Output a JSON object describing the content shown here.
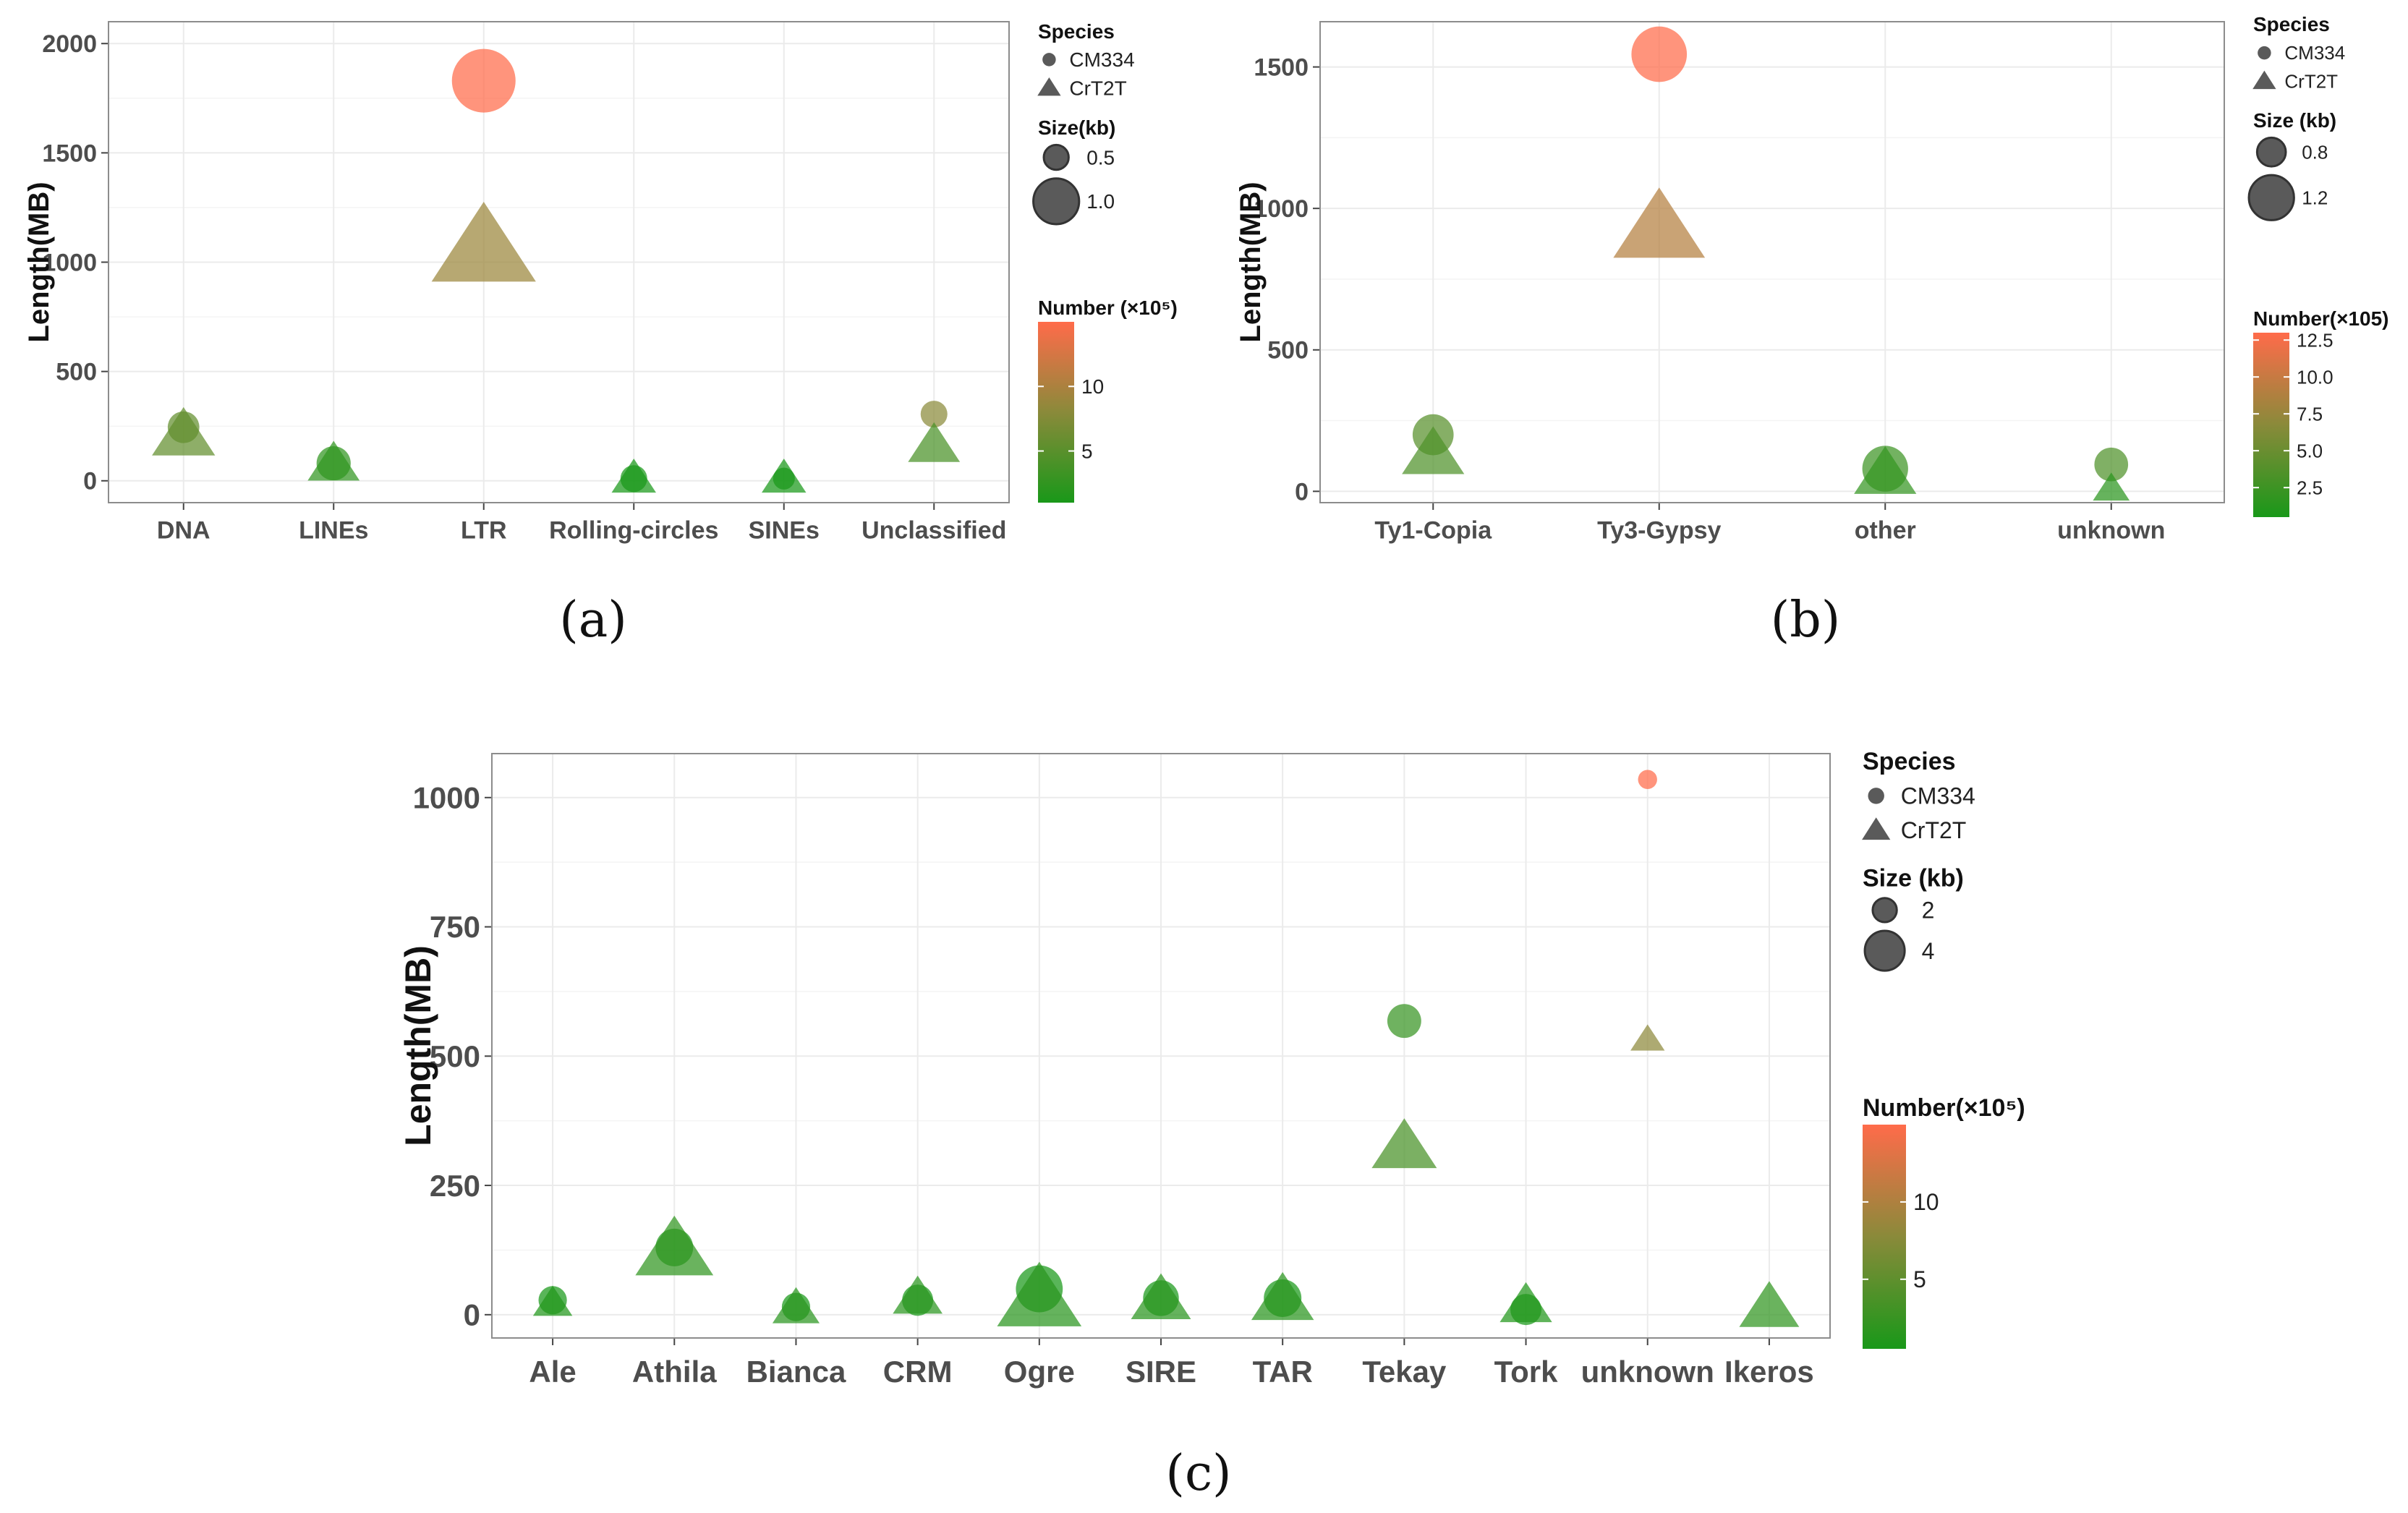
{
  "colors": {
    "low": "#199819",
    "mid": "#8a8a3a",
    "high": "#ff6b4a",
    "legend_shape": "#5a5a5a",
    "grid": "#ebebeb",
    "panel_border": "#8c8c8c"
  },
  "chart_data": [
    {
      "id": "a",
      "type": "scatter",
      "caption": "(a)",
      "ylabel": "Length(MB)",
      "xlabel": "",
      "categories": [
        "DNA",
        "LINEs",
        "LTR",
        "Rolling-circles",
        "SINEs",
        "Unclassified"
      ],
      "ylim": [
        -100,
        2100
      ],
      "yticks": [
        0,
        500,
        1000,
        1500,
        2000
      ],
      "color_range": [
        1,
        15
      ],
      "size_range_kb": [
        0.2,
        1.2
      ],
      "series": [
        {
          "name": "CM334",
          "shape": "circle",
          "values": [
            245,
            80,
            1830,
            10,
            10,
            305
          ],
          "size_kb": [
            0.55,
            0.6,
            1.2,
            0.45,
            0.35,
            0.45
          ],
          "number": [
            5.5,
            2.5,
            15,
            1,
            1,
            8
          ]
        },
        {
          "name": "CrT2T",
          "shape": "triangle",
          "values": [
            200,
            70,
            1050,
            5,
            5,
            155
          ],
          "size_kb": [
            0.75,
            0.6,
            1.3,
            0.5,
            0.5,
            0.6
          ],
          "number": [
            5.5,
            2.5,
            9,
            1,
            1,
            4
          ]
        }
      ],
      "legend": {
        "species_title": "Species",
        "species": [
          "CM334",
          "CrT2T"
        ],
        "size_title": "Size(kb)",
        "sizes": [
          {
            "label": "0.5",
            "value": 0.5
          },
          {
            "label": "1.0",
            "value": 1.0
          }
        ],
        "number_title": "Number (×10⁵)",
        "number_ticks": [
          {
            "label": "10",
            "value": 10
          },
          {
            "label": "5",
            "value": 5
          }
        ]
      }
    },
    {
      "id": "b",
      "type": "scatter",
      "caption": "(b)",
      "ylabel": "Length(MB)",
      "xlabel": "",
      "categories": [
        "Ty1-Copia",
        "Ty3-Gypsy",
        "other",
        "unknown"
      ],
      "ylim": [
        -40,
        1660
      ],
      "yticks": [
        0,
        500,
        1000,
        1500
      ],
      "color_range": [
        0.5,
        13
      ],
      "size_range_kb": [
        0.4,
        1.3
      ],
      "series": [
        {
          "name": "CM334",
          "shape": "circle",
          "values": [
            200,
            1545,
            80,
            95
          ],
          "size_kb": [
            0.95,
            1.25,
            1.05,
            0.8
          ],
          "number": [
            4,
            13,
            2.5,
            3.5
          ]
        },
        {
          "name": "CrT2T",
          "shape": "triangle",
          "values": [
            125,
            920,
            55,
            5
          ],
          "size_kb": [
            0.95,
            1.35,
            0.95,
            0.6
          ],
          "number": [
            3.5,
            9,
            2,
            1.5
          ]
        }
      ],
      "legend": {
        "species_title": "Species",
        "species": [
          "CM334",
          "CrT2T"
        ],
        "size_title": "Size (kb)",
        "sizes": [
          {
            "label": "0.8",
            "value": 0.8
          },
          {
            "label": "1.2",
            "value": 1.2
          }
        ],
        "number_title": "Number(×105)",
        "number_ticks": [
          {
            "label": "12.5",
            "value": 12.5
          },
          {
            "label": "10.0",
            "value": 10
          },
          {
            "label": "7.5",
            "value": 7.5
          },
          {
            "label": "5.0",
            "value": 5
          },
          {
            "label": "2.5",
            "value": 2.5
          }
        ]
      }
    },
    {
      "id": "c",
      "type": "scatter",
      "caption": "(c)",
      "ylabel": "Length(MB)",
      "xlabel": "",
      "categories": [
        "Ale",
        "Athila",
        "Bianca",
        "CRM",
        "Ogre",
        "SIRE",
        "TAR",
        "Tekay",
        "Tork",
        "unknown",
        "Ikeros"
      ],
      "ylim": [
        -45,
        1085
      ],
      "yticks": [
        0,
        250,
        500,
        750,
        1000
      ],
      "color_range": [
        0.5,
        15
      ],
      "size_range_kb": [
        0.5,
        5.5
      ],
      "series": [
        {
          "name": "CM334",
          "shape": "circle",
          "values": [
            28,
            130,
            15,
            28,
            50,
            32,
            32,
            568,
            10,
            1035,
            null
          ],
          "size_kb": [
            2.0,
            3.0,
            2.0,
            2.3,
            4.0,
            2.8,
            3.0,
            2.6,
            2.3,
            1.0,
            null
          ],
          "number": [
            0.5,
            0.8,
            0.5,
            0.5,
            0.5,
            0.5,
            0.5,
            2.5,
            0.5,
            15,
            null
          ]
        },
        {
          "name": "CrT2T",
          "shape": "triangle",
          "values": [
            20,
            120,
            10,
            30,
            25,
            25,
            25,
            320,
            15,
            530,
            10
          ],
          "size_kb": [
            2.0,
            5.0,
            2.6,
            2.8,
            5.5,
            3.6,
            3.8,
            4.0,
            3.0,
            1.6,
            3.6
          ],
          "number": [
            1,
            2,
            1.5,
            1.5,
            1.5,
            1.5,
            1.5,
            3.5,
            1,
            8,
            2
          ]
        }
      ],
      "legend": {
        "species_title": "Species",
        "species": [
          "CM334",
          "CrT2T"
        ],
        "size_title": "Size (kb)",
        "sizes": [
          {
            "label": "2",
            "value": 2
          },
          {
            "label": "4",
            "value": 4
          }
        ],
        "number_title": "Number(×10⁵)",
        "number_ticks": [
          {
            "label": "10",
            "value": 10
          },
          {
            "label": "5",
            "value": 5
          }
        ]
      }
    }
  ]
}
